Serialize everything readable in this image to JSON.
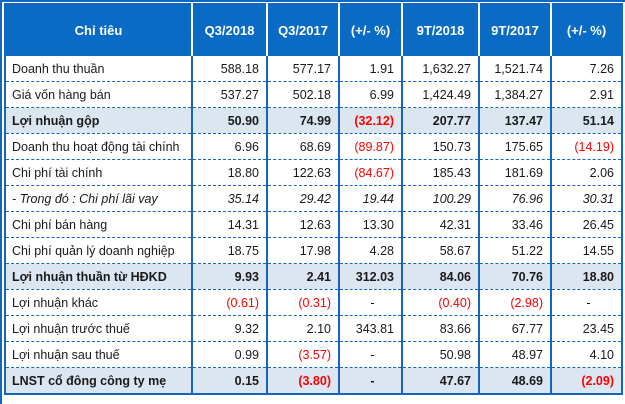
{
  "colors": {
    "header_bg": "#0a6bc4",
    "header_text": "#ffffff",
    "border": "#1465bd",
    "shaded_row_bg": "#dce6f1",
    "negative": "#ff0000",
    "text": "#1a1a1a"
  },
  "table": {
    "header": [
      "Chỉ tiêu",
      "Q3/2018",
      "Q3/2017",
      "(+/- %)",
      "9T/2018",
      "9T/2017",
      "(+/- %)"
    ],
    "rows": [
      {
        "label": "Doanh thu thuần",
        "style": "normal",
        "values": [
          "588.18",
          "577.17",
          "1.91",
          "1,632.27",
          "1,521.74",
          "7.26"
        ]
      },
      {
        "label": "Giá vốn hàng bán",
        "style": "normal",
        "values": [
          "537.27",
          "502.18",
          "6.99",
          "1,424.49",
          "1,384.27",
          "2.91"
        ]
      },
      {
        "label": "Lợi nhuận gộp",
        "style": "total",
        "values": [
          "50.90",
          "74.99",
          "(32.12)",
          "207.77",
          "137.47",
          "51.14"
        ]
      },
      {
        "label": "Doanh thu hoạt động tài chính",
        "style": "normal",
        "values": [
          "6.96",
          "68.69",
          "(89.87)",
          "150.73",
          "175.65",
          "(14.19)"
        ]
      },
      {
        "label": "Chi phí tài chính",
        "style": "normal",
        "values": [
          "18.80",
          "122.63",
          "(84.67)",
          "185.43",
          "181.69",
          "2.06"
        ]
      },
      {
        "label": "- Trong đó : Chi phí lãi vay",
        "style": "italic",
        "values": [
          "35.14",
          "29.42",
          "19.44",
          "100.29",
          "76.96",
          "30.31"
        ]
      },
      {
        "label": "Chi phí bán hàng",
        "style": "normal",
        "values": [
          "14.31",
          "12.63",
          "13.30",
          "42.31",
          "33.46",
          "26.45"
        ]
      },
      {
        "label": "Chi phí quản lý doanh nghiệp",
        "style": "normal",
        "values": [
          "18.75",
          "17.98",
          "4.28",
          "58.67",
          "51.22",
          "14.55"
        ]
      },
      {
        "label": "Lợi nhuận thuần từ HĐKD",
        "style": "total",
        "values": [
          "9.93",
          "2.41",
          "312.03",
          "84.06",
          "70.76",
          "18.80"
        ]
      },
      {
        "label": "Lợi nhuận khác",
        "style": "normal",
        "values": [
          "(0.61)",
          "(0.31)",
          "-",
          "(0.40)",
          "(2.98)",
          "-"
        ]
      },
      {
        "label": "Lợi nhuận trước thuế",
        "style": "normal",
        "values": [
          "9.32",
          "2.10",
          "343.81",
          "83.66",
          "67.77",
          "23.45"
        ]
      },
      {
        "label": "Lợi nhuận sau thuế",
        "style": "normal",
        "values": [
          "0.99",
          "(3.57)",
          "-",
          "50.98",
          "48.97",
          "4.10"
        ]
      },
      {
        "label": "LNST cổ đông công ty mẹ",
        "style": "total",
        "values": [
          "0.15",
          "(3.80)",
          "-",
          "47.67",
          "48.69",
          "(2.09)"
        ]
      }
    ]
  },
  "chart_data": {
    "type": "table",
    "columns": [
      "Chỉ tiêu",
      "Q3/2018",
      "Q3/2017",
      "(+/- %)",
      "9T/2018",
      "9T/2017",
      "(+/- %)"
    ],
    "rows": [
      [
        "Doanh thu thuần",
        588.18,
        577.17,
        1.91,
        1632.27,
        1521.74,
        7.26
      ],
      [
        "Giá vốn hàng bán",
        537.27,
        502.18,
        6.99,
        1424.49,
        1384.27,
        2.91
      ],
      [
        "Lợi nhuận gộp",
        50.9,
        74.99,
        -32.12,
        207.77,
        137.47,
        51.14
      ],
      [
        "Doanh thu hoạt động tài chính",
        6.96,
        68.69,
        -89.87,
        150.73,
        175.65,
        -14.19
      ],
      [
        "Chi phí tài chính",
        18.8,
        122.63,
        -84.67,
        185.43,
        181.69,
        2.06
      ],
      [
        "- Trong đó : Chi phí lãi vay",
        35.14,
        29.42,
        19.44,
        100.29,
        76.96,
        30.31
      ],
      [
        "Chi phí bán hàng",
        14.31,
        12.63,
        13.3,
        42.31,
        33.46,
        26.45
      ],
      [
        "Chi phí quản lý doanh nghiệp",
        18.75,
        17.98,
        4.28,
        58.67,
        51.22,
        14.55
      ],
      [
        "Lợi nhuận thuần từ HĐKD",
        9.93,
        2.41,
        312.03,
        84.06,
        70.76,
        18.8
      ],
      [
        "Lợi nhuận khác",
        -0.61,
        -0.31,
        null,
        -0.4,
        -2.98,
        null
      ],
      [
        "Lợi nhuận trước thuế",
        9.32,
        2.1,
        343.81,
        83.66,
        67.77,
        23.45
      ],
      [
        "Lợi nhuận sau thuế",
        0.99,
        -3.57,
        null,
        50.98,
        48.97,
        4.1
      ],
      [
        "LNST cổ đông công ty mẹ",
        0.15,
        -3.8,
        null,
        47.67,
        48.69,
        -2.09
      ]
    ],
    "notes": "Negative values shown in red parentheses; bold shaded rows are subtotal rows; italic row is a breakdown line."
  }
}
